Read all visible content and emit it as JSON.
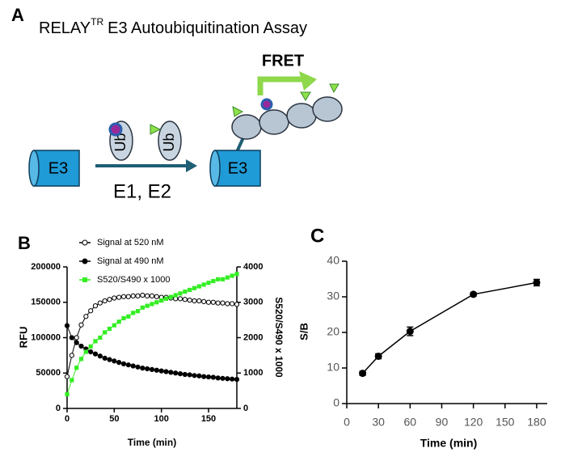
{
  "panel_a": {
    "letter": "A",
    "title_main": "RELAY",
    "title_sup": "TR",
    "title_rest": "E3 Autoubiquitination Assay",
    "e3_left": "E3",
    "ub_1": "Ub",
    "ub_2": "Ub",
    "enzymes": "E1, E2",
    "e3_right": "E3",
    "fret": "FRET"
  },
  "chart_data": [
    {
      "type": "line",
      "letter": "B",
      "xlabel": "Time (min)",
      "ylabel": "RFU",
      "y2label": "S520/S490 x 1000",
      "legend": "upper left",
      "x": [
        0,
        5,
        10,
        15,
        20,
        25,
        30,
        35,
        40,
        45,
        50,
        55,
        60,
        65,
        70,
        75,
        80,
        85,
        90,
        95,
        100,
        105,
        110,
        115,
        120,
        125,
        130,
        135,
        140,
        145,
        150,
        155,
        160,
        165,
        170,
        175,
        180
      ],
      "xlim": [
        0,
        180
      ],
      "xticks": [
        0,
        50,
        100,
        150
      ],
      "ylim": [
        0,
        200000
      ],
      "yticks": [
        0,
        50000,
        100000,
        150000,
        200000
      ],
      "y2lim": [
        0,
        4000
      ],
      "y2ticks": [
        0,
        1000,
        2000,
        3000,
        4000
      ],
      "series": [
        {
          "name": "Signal at 520 nM",
          "color": "#000000",
          "marker": "open-circle",
          "values": [
            45000,
            75000,
            100000,
            118000,
            130000,
            138000,
            145000,
            149000,
            152000,
            154000,
            156000,
            157000,
            158000,
            158000,
            159000,
            159000,
            160000,
            159000,
            159000,
            158000,
            157000,
            157000,
            156000,
            155000,
            155000,
            154000,
            153000,
            152000,
            152000,
            151000,
            150000,
            150000,
            149000,
            149000,
            148000,
            148000,
            147000
          ]
        },
        {
          "name": "Signal at 490 nM",
          "color": "#000000",
          "marker": "circle",
          "values": [
            117000,
            100000,
            93000,
            88000,
            84000,
            80000,
            77000,
            74000,
            71000,
            69000,
            67000,
            65000,
            63000,
            61500,
            60000,
            58500,
            57000,
            56000,
            55000,
            54000,
            53000,
            52000,
            51000,
            50000,
            49000,
            48000,
            47500,
            46500,
            46000,
            45000,
            44500,
            44000,
            43000,
            42500,
            42000,
            41500,
            41000
          ]
        },
        {
          "name": "S520/S490 x 1000",
          "color": "#33ee22",
          "marker": "square",
          "axis": "y2",
          "values": [
            400,
            800,
            1150,
            1400,
            1600,
            1750,
            1900,
            2000,
            2150,
            2250,
            2350,
            2450,
            2550,
            2600,
            2700,
            2750,
            2850,
            2900,
            2950,
            3000,
            3050,
            3100,
            3150,
            3200,
            3250,
            3300,
            3350,
            3400,
            3450,
            3500,
            3550,
            3600,
            3650,
            3650,
            3700,
            3750,
            3800
          ]
        }
      ]
    },
    {
      "type": "line",
      "letter": "C",
      "xlabel": "Time (min)",
      "ylabel": "S/B",
      "x": [
        15,
        30,
        60,
        120,
        180
      ],
      "xlim": [
        0,
        190
      ],
      "xticks": [
        0,
        30,
        60,
        90,
        120,
        150,
        180
      ],
      "ylim": [
        0,
        40
      ],
      "yticks": [
        0,
        10,
        20,
        30,
        40
      ],
      "series": [
        {
          "color": "#000000",
          "marker": "circle",
          "values": [
            8.5,
            13.3,
            20.3,
            30.7,
            34.0
          ],
          "errors": [
            0.6,
            0.7,
            1.2,
            0.5,
            0.9
          ]
        }
      ]
    }
  ]
}
